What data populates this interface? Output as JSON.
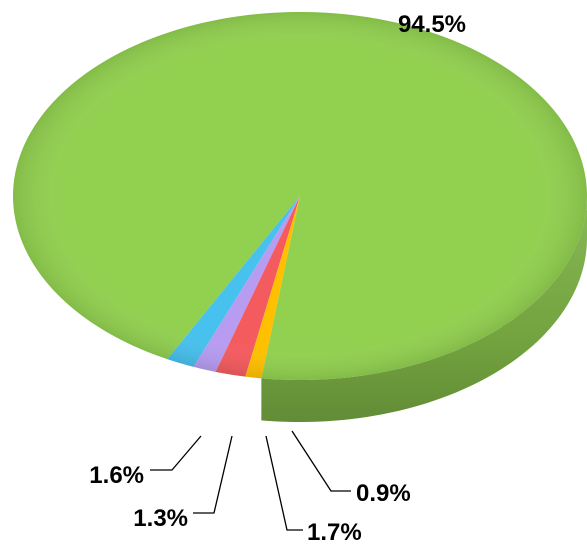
{
  "chart_data": {
    "type": "pie",
    "style": "3d",
    "slices": [
      {
        "label": "94.5%",
        "value": 94.5,
        "color": "#92d050"
      },
      {
        "label": "1.6%",
        "value": 1.6,
        "color": "#47c1ee"
      },
      {
        "label": "1.3%",
        "value": 1.3,
        "color": "#b79cf2"
      },
      {
        "label": "1.7%",
        "value": 1.7,
        "color": "#f45b5f"
      },
      {
        "label": "0.9%",
        "value": 0.9,
        "color": "#ffc000"
      }
    ]
  }
}
